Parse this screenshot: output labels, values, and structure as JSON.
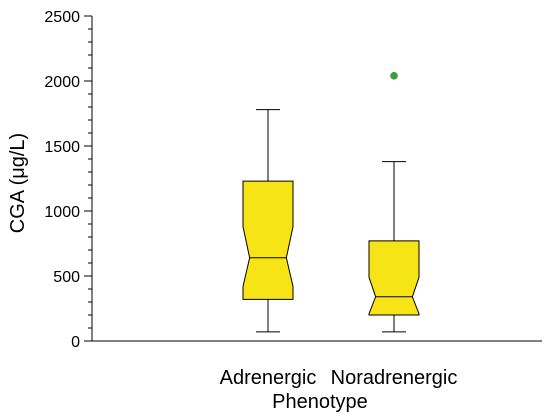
{
  "chart_data": {
    "type": "box",
    "xlabel": "Phenotype",
    "ylabel": "CGA (μg/L)",
    "ylim": [
      0,
      2500
    ],
    "yticks": [
      0,
      500,
      1000,
      1500,
      2000,
      2500
    ],
    "notched": true,
    "box_fill": "#f7e416",
    "outlier_color": "#3aa03a",
    "grid": false,
    "categories": [
      "Adrenergic",
      "Noradrenergic"
    ],
    "boxes": [
      {
        "category": "Adrenergic",
        "whisker_low": 70,
        "q1": 320,
        "median": 640,
        "q3": 1230,
        "whisker_high": 1780,
        "notch_low": 420,
        "notch_high": 880,
        "outliers": []
      },
      {
        "category": "Noradrenergic",
        "whisker_low": 70,
        "q1": 200,
        "median": 340,
        "q3": 770,
        "whisker_high": 1380,
        "notch_low": 210,
        "notch_high": 490,
        "outliers": [
          2040
        ]
      }
    ]
  }
}
